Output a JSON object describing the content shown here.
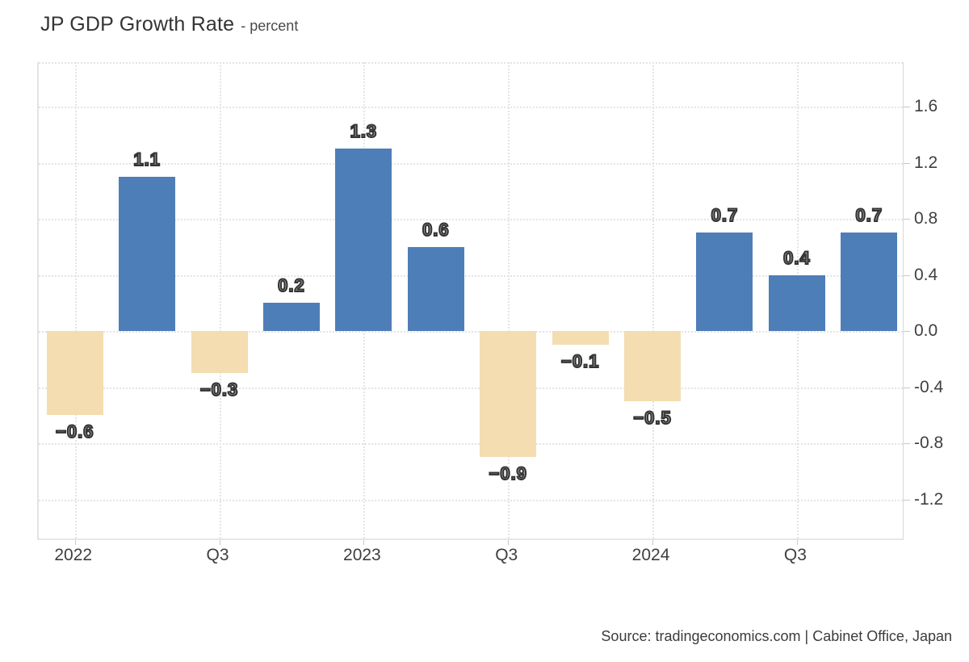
{
  "header": {
    "title": "JP GDP Growth Rate",
    "subtitle": "- percent"
  },
  "footer": {
    "source": "Source: tradingeconomics.com | Cabinet Office, Japan"
  },
  "colors": {
    "bar_positive": "#4e7eb8",
    "bar_negative": "#f3ddb1",
    "grid": "#e4e4e4",
    "axis_tick": "#c9c9c9",
    "tick_text": "#3f3f3f",
    "bar_label_fill": "#9a9a9a",
    "bar_label_stroke": "#333333"
  },
  "chart_data": {
    "type": "bar",
    "title": "JP GDP Growth Rate",
    "ylabel": "percent",
    "values": [
      -0.6,
      1.1,
      -0.3,
      0.2,
      1.3,
      0.6,
      -0.9,
      -0.1,
      -0.5,
      0.7,
      0.4,
      0.7
    ],
    "bar_labels": [
      "−0.6",
      "1.1",
      "−0.3",
      "0.2",
      "1.3",
      "0.6",
      "−0.9",
      "−0.1",
      "−0.5",
      "0.7",
      "0.4",
      "0.7"
    ],
    "x_tick_labels": [
      {
        "label": "2022",
        "bar_index": 0
      },
      {
        "label": "Q3",
        "bar_index": 2
      },
      {
        "label": "2023",
        "bar_index": 4
      },
      {
        "label": "Q3",
        "bar_index": 6
      },
      {
        "label": "2024",
        "bar_index": 8
      },
      {
        "label": "Q3",
        "bar_index": 10
      }
    ],
    "y_ticks": [
      "1.6",
      "1.2",
      "0.8",
      "0.4",
      "0.0",
      "-0.4",
      "-0.8",
      "-1.2"
    ],
    "ylim": [
      -1.49,
      1.92
    ],
    "grid": true,
    "legend_position": "none"
  }
}
